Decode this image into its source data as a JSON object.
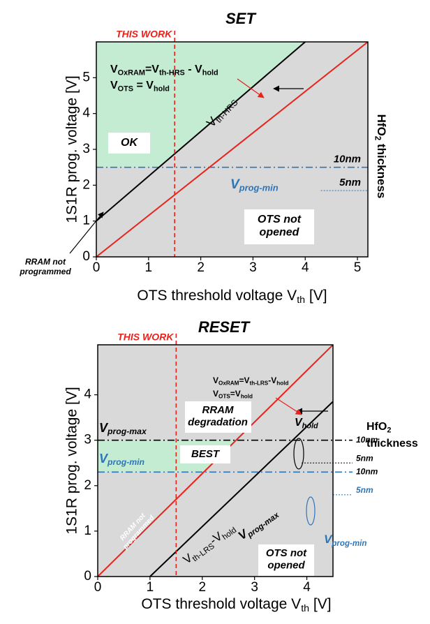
{
  "chart_data": [
    {
      "type": "line",
      "title": "SET",
      "xlabel": {
        "parts": [
          "OTS threshold voltage V",
          "th",
          " [V]"
        ]
      },
      "ylabel": "1S1R prog. voltage [V]",
      "xlim": [
        0,
        5.2
      ],
      "ylim": [
        0,
        6.0
      ],
      "xticks": [
        0,
        1,
        2,
        3,
        4,
        5
      ],
      "yticks": [
        0,
        1,
        2,
        3,
        4,
        5
      ],
      "series": [
        {
          "color": "#000000",
          "x": [
            0,
            4.0
          ],
          "values": [
            1,
            6.0
          ]
        },
        {
          "color": "#e8231c",
          "x": [
            0,
            5.2
          ],
          "values": [
            0,
            6.0
          ]
        }
      ],
      "hlines": [
        {
          "value": 2.5,
          "from": 0,
          "color": "#2e75b6",
          "style": "dashdot",
          "label": "10nm"
        },
        {
          "value": 1.85,
          "from": 4.3,
          "color": "#2e75b6",
          "style": "dot",
          "label": "5nm"
        }
      ],
      "vline": {
        "value": 1.5,
        "color": "#e8231c",
        "label": "THIS WORK"
      },
      "annotations": [
        {
          "parts": [
            "V",
            "OxRAM",
            "=V",
            "th-HRS",
            " - V",
            "hold"
          ]
        },
        {
          "parts": [
            "V",
            "OTS",
            " = V",
            "hold"
          ]
        },
        {
          "lines": [
            "OK"
          ]
        },
        {
          "parts": [
            "V",
            "th-HRS"
          ]
        },
        {
          "parts": [
            "V",
            "prog-min"
          ]
        },
        {
          "lines": [
            "OTS not",
            "opened"
          ]
        },
        {
          "lines": [
            "RRAM not",
            "programmed"
          ]
        },
        {
          "parts": [
            "HfO",
            "2",
            " thickness"
          ]
        }
      ]
    },
    {
      "type": "line",
      "title": "RESET",
      "xlabel": {
        "parts": [
          "OTS threshold voltage V",
          "th",
          " [V]"
        ]
      },
      "ylabel": "1S1R prog. voltage [V]",
      "xlim": [
        0,
        4.5
      ],
      "ylim": [
        0,
        5.1
      ],
      "xticks": [
        0,
        1,
        2,
        3,
        4
      ],
      "yticks": [
        0,
        1,
        2,
        3,
        4
      ],
      "series": [
        {
          "color": "#e8231c",
          "x": [
            0,
            4.5
          ],
          "values": [
            0,
            5.1
          ]
        },
        {
          "color": "#000000",
          "x": [
            1,
            4.5
          ],
          "values": [
            0,
            3.85
          ]
        }
      ],
      "hlines": [
        {
          "value": 3.0,
          "from": 0,
          "color": "#000000",
          "style": "dashdot",
          "label": "10nm"
        },
        {
          "value": 2.5,
          "from": 3.9,
          "color": "#000000",
          "style": "dot",
          "label": "5nm"
        },
        {
          "value": 2.3,
          "from": 0,
          "color": "#2e75b6",
          "style": "dashdot",
          "label": "10nm"
        },
        {
          "value": 1.8,
          "from": 4.5,
          "color": "#2e75b6",
          "style": "dot",
          "label": "5nm"
        }
      ],
      "vline": {
        "value": 1.5,
        "color": "#e8231c",
        "label": "THIS WORK"
      },
      "annotations": [
        {
          "parts": [
            "V",
            "OxRAM",
            "=V",
            "th-LRS",
            "-V",
            "hold"
          ]
        },
        {
          "parts": [
            "V",
            "OTS",
            "=V",
            "hold"
          ]
        },
        {
          "lines": [
            "RRAM",
            "degradation"
          ]
        },
        {
          "lines": [
            "BEST"
          ]
        },
        {
          "lines": [
            "RRAM not",
            "programmed"
          ]
        },
        {
          "lines": [
            "OTS not",
            "opened"
          ]
        },
        {
          "parts": [
            "V",
            "th-LRS",
            "-V",
            "hold"
          ]
        },
        {
          "parts": [
            "V",
            "prog-max"
          ]
        },
        {
          "parts": [
            "V",
            "hold"
          ]
        },
        {
          "parts": [
            "V",
            "prog-max"
          ]
        },
        {
          "parts": [
            "V",
            "prog-min"
          ]
        },
        {
          "parts": [
            "V",
            "prog-min"
          ]
        },
        {
          "parts": [
            "HfO",
            "2"
          ]
        },
        {
          "lines": [
            "thickness"
          ]
        }
      ]
    }
  ]
}
